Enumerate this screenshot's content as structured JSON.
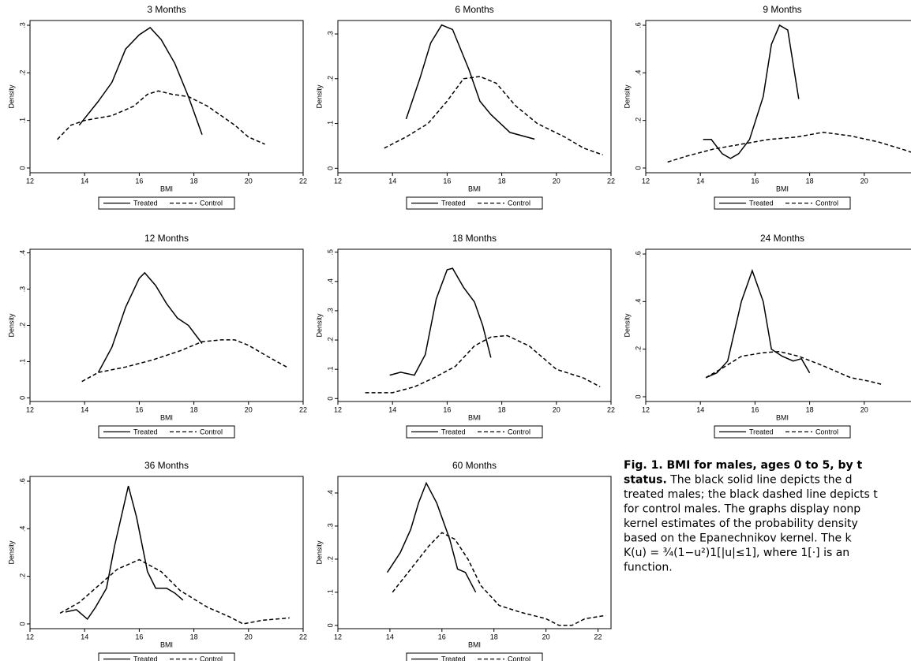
{
  "chart_data": [
    {
      "type": "line",
      "title": "3 Months",
      "x_label": "BMI",
      "y_label": "Density",
      "xlim": [
        12,
        22
      ],
      "xticks": [
        12,
        14,
        16,
        18,
        20,
        22
      ],
      "ylim": [
        -0.01,
        0.31
      ],
      "yticks": [
        0,
        {
          "value": 0.1,
          "label": ".1"
        },
        {
          "value": 0.2,
          "label": ".2"
        },
        {
          "value": 0.3,
          "label": ".3"
        }
      ],
      "series": [
        {
          "name": "Treated",
          "color": "#000000",
          "dash": false,
          "x": [
            13.8,
            14.5,
            15,
            15.5,
            16,
            16.4,
            16.8,
            17.3,
            17.8,
            18.3
          ],
          "values": [
            0.09,
            0.14,
            0.18,
            0.25,
            0.28,
            0.295,
            0.27,
            0.22,
            0.15,
            0.07
          ]
        },
        {
          "name": "Control",
          "color": "#000000",
          "dash": true,
          "x": [
            13,
            13.5,
            14,
            15,
            15.8,
            16.3,
            16.7,
            17.2,
            17.8,
            18.5,
            19.5,
            20,
            20.6
          ],
          "values": [
            0.06,
            0.09,
            0.1,
            0.11,
            0.13,
            0.155,
            0.162,
            0.155,
            0.15,
            0.13,
            0.09,
            0.065,
            0.05
          ]
        }
      ]
    },
    {
      "type": "line",
      "title": "6 Months",
      "x_label": "BMI",
      "y_label": "Density",
      "xlim": [
        12,
        22
      ],
      "xticks": [
        12,
        14,
        16,
        18,
        20,
        22
      ],
      "ylim": [
        -0.01,
        0.33
      ],
      "yticks": [
        0,
        {
          "value": 0.1,
          "label": ".1"
        },
        {
          "value": 0.2,
          "label": ".2"
        },
        {
          "value": 0.3,
          "label": ".3"
        }
      ],
      "series": [
        {
          "name": "Treated",
          "color": "#000000",
          "dash": false,
          "x": [
            14.5,
            15,
            15.4,
            15.8,
            16.2,
            16.8,
            17.2,
            17.6,
            18.3,
            19.2
          ],
          "values": [
            0.11,
            0.2,
            0.28,
            0.32,
            0.31,
            0.22,
            0.15,
            0.12,
            0.08,
            0.065
          ]
        },
        {
          "name": "Control",
          "color": "#000000",
          "dash": true,
          "x": [
            13.7,
            14.5,
            15.3,
            16,
            16.6,
            17.2,
            17.8,
            18.5,
            19.3,
            20.3,
            21,
            21.7
          ],
          "values": [
            0.045,
            0.07,
            0.1,
            0.15,
            0.2,
            0.205,
            0.19,
            0.14,
            0.1,
            0.07,
            0.045,
            0.03
          ]
        }
      ]
    },
    {
      "type": "line",
      "title": "9 Months",
      "x_label": "BMI",
      "y_label": "Density",
      "xlim": [
        12,
        22
      ],
      "xticks": [
        12,
        14,
        16,
        18,
        20,
        22
      ],
      "ylim": [
        -0.02,
        0.62
      ],
      "yticks": [
        0,
        {
          "value": 0.2,
          "label": ".2"
        },
        {
          "value": 0.4,
          "label": ".4"
        },
        {
          "value": 0.6,
          "label": ".6"
        }
      ],
      "series": [
        {
          "name": "Treated",
          "color": "#000000",
          "dash": false,
          "x": [
            14.1,
            14.4,
            14.8,
            15.1,
            15.4,
            15.8,
            16.3,
            16.6,
            16.9,
            17.2,
            17.6
          ],
          "values": [
            0.12,
            0.12,
            0.06,
            0.04,
            0.06,
            0.12,
            0.3,
            0.52,
            0.6,
            0.58,
            0.29
          ]
        },
        {
          "name": "Control",
          "color": "#000000",
          "dash": true,
          "x": [
            12.8,
            13.5,
            14.5,
            15.5,
            16.5,
            17.5,
            18.5,
            19.5,
            20.5,
            21.5,
            22
          ],
          "values": [
            0.025,
            0.05,
            0.08,
            0.1,
            0.12,
            0.13,
            0.15,
            0.135,
            0.11,
            0.075,
            0.055
          ]
        }
      ]
    },
    {
      "type": "line",
      "title": "12 Months",
      "x_label": "BMI",
      "y_label": "Density",
      "xlim": [
        12,
        22
      ],
      "xticks": [
        12,
        14,
        16,
        18,
        20,
        22
      ],
      "ylim": [
        -0.01,
        0.41
      ],
      "yticks": [
        0,
        {
          "value": 0.1,
          "label": ".1"
        },
        {
          "value": 0.2,
          "label": ".2"
        },
        {
          "value": 0.3,
          "label": ".3"
        },
        {
          "value": 0.4,
          "label": ".4"
        }
      ],
      "series": [
        {
          "name": "Treated",
          "color": "#000000",
          "dash": false,
          "x": [
            14.5,
            15,
            15.5,
            16,
            16.2,
            16.6,
            17,
            17.4,
            17.8,
            18.3
          ],
          "values": [
            0.07,
            0.14,
            0.25,
            0.33,
            0.345,
            0.31,
            0.26,
            0.22,
            0.2,
            0.15
          ]
        },
        {
          "name": "Control",
          "color": "#000000",
          "dash": true,
          "x": [
            13.9,
            14.5,
            15.5,
            16.5,
            17.5,
            18.3,
            19,
            19.5,
            20,
            20.8,
            21.4
          ],
          "values": [
            0.045,
            0.07,
            0.085,
            0.105,
            0.13,
            0.155,
            0.16,
            0.16,
            0.145,
            0.11,
            0.085
          ]
        }
      ]
    },
    {
      "type": "line",
      "title": "18 Months",
      "x_label": "BMI",
      "y_label": "Density",
      "xlim": [
        12,
        22
      ],
      "xticks": [
        12,
        14,
        16,
        18,
        20,
        22
      ],
      "ylim": [
        -0.01,
        0.51
      ],
      "yticks": [
        0,
        {
          "value": 0.1,
          "label": ".1"
        },
        {
          "value": 0.2,
          "label": ".2"
        },
        {
          "value": 0.3,
          "label": ".3"
        },
        {
          "value": 0.4,
          "label": ".4"
        },
        {
          "value": 0.5,
          "label": ".5"
        }
      ],
      "series": [
        {
          "name": "Treated",
          "color": "#000000",
          "dash": false,
          "x": [
            13.9,
            14.3,
            14.8,
            15.2,
            15.6,
            16,
            16.2,
            16.6,
            17,
            17.3,
            17.6
          ],
          "values": [
            0.08,
            0.09,
            0.08,
            0.15,
            0.34,
            0.44,
            0.445,
            0.38,
            0.33,
            0.25,
            0.14
          ]
        },
        {
          "name": "Control",
          "color": "#000000",
          "dash": true,
          "x": [
            13,
            14,
            14.8,
            15.5,
            16.3,
            17,
            17.6,
            18.2,
            19,
            20,
            21,
            21.6
          ],
          "values": [
            0.02,
            0.02,
            0.04,
            0.07,
            0.11,
            0.18,
            0.21,
            0.215,
            0.18,
            0.1,
            0.07,
            0.04
          ]
        }
      ]
    },
    {
      "type": "line",
      "title": "24 Months",
      "x_label": "BMI",
      "y_label": "Density",
      "xlim": [
        12,
        22
      ],
      "xticks": [
        12,
        14,
        16,
        18,
        20,
        22
      ],
      "ylim": [
        -0.02,
        0.62
      ],
      "yticks": [
        0,
        {
          "value": 0.2,
          "label": ".2"
        },
        {
          "value": 0.4,
          "label": ".4"
        },
        {
          "value": 0.6,
          "label": ".6"
        }
      ],
      "series": [
        {
          "name": "Treated",
          "color": "#000000",
          "dash": false,
          "x": [
            14.2,
            14.6,
            15,
            15.5,
            15.9,
            16.3,
            16.6,
            17,
            17.4,
            17.7,
            18
          ],
          "values": [
            0.08,
            0.1,
            0.15,
            0.4,
            0.53,
            0.4,
            0.2,
            0.17,
            0.15,
            0.16,
            0.1
          ]
        },
        {
          "name": "Control",
          "color": "#000000",
          "dash": true,
          "x": [
            14.2,
            14.8,
            15.5,
            16.3,
            16.9,
            17.6,
            18.5,
            19.5,
            20.2,
            20.7
          ],
          "values": [
            0.08,
            0.12,
            0.17,
            0.185,
            0.19,
            0.17,
            0.13,
            0.08,
            0.065,
            0.05
          ]
        }
      ]
    },
    {
      "type": "line",
      "title": "36 Months",
      "x_label": "BMI",
      "y_label": "Density",
      "xlim": [
        12,
        22
      ],
      "xticks": [
        12,
        14,
        16,
        18,
        20,
        22
      ],
      "ylim": [
        -0.02,
        0.62
      ],
      "yticks": [
        0,
        {
          "value": 0.2,
          "label": ".2"
        },
        {
          "value": 0.4,
          "label": ".4"
        },
        {
          "value": 0.6,
          "label": ".6"
        }
      ],
      "series": [
        {
          "name": "Treated",
          "color": "#000000",
          "dash": false,
          "x": [
            13.3,
            13.7,
            14.1,
            14.4,
            14.8,
            15.1,
            15.6,
            15.9,
            16.3,
            16.6,
            17,
            17.3,
            17.6
          ],
          "values": [
            0.05,
            0.06,
            0.02,
            0.07,
            0.15,
            0.33,
            0.58,
            0.45,
            0.22,
            0.15,
            0.15,
            0.13,
            0.1
          ]
        },
        {
          "name": "Control",
          "color": "#000000",
          "dash": true,
          "x": [
            13.1,
            13.8,
            14.5,
            15.2,
            16,
            16.8,
            17.5,
            18.5,
            19.3,
            19.8,
            20.5,
            21.5
          ],
          "values": [
            0.045,
            0.09,
            0.16,
            0.23,
            0.27,
            0.22,
            0.14,
            0.07,
            0.03,
            0.0,
            0.015,
            0.025
          ]
        }
      ]
    },
    {
      "type": "line",
      "title": "60 Months",
      "x_label": "BMI",
      "y_label": "Density",
      "xlim": [
        12,
        22.5
      ],
      "xticks": [
        12,
        14,
        16,
        18,
        20,
        22
      ],
      "ylim": [
        -0.01,
        0.45
      ],
      "yticks": [
        0,
        {
          "value": 0.1,
          "label": ".1"
        },
        {
          "value": 0.2,
          "label": ".2"
        },
        {
          "value": 0.3,
          "label": ".3"
        },
        {
          "value": 0.4,
          "label": ".4"
        }
      ],
      "series": [
        {
          "name": "Treated",
          "color": "#000000",
          "dash": false,
          "x": [
            13.9,
            14.4,
            14.8,
            15.1,
            15.4,
            15.8,
            16.3,
            16.6,
            16.9,
            17.3
          ],
          "values": [
            0.16,
            0.22,
            0.29,
            0.37,
            0.43,
            0.37,
            0.26,
            0.17,
            0.16,
            0.1
          ]
        },
        {
          "name": "Control",
          "color": "#000000",
          "dash": true,
          "x": [
            14.1,
            14.8,
            15.5,
            16,
            16.5,
            17,
            17.5,
            18.2,
            19,
            20,
            20.5,
            21,
            21.5,
            22.3
          ],
          "values": [
            0.1,
            0.17,
            0.24,
            0.28,
            0.26,
            0.2,
            0.12,
            0.06,
            0.04,
            0.02,
            0.0,
            0.0,
            0.02,
            0.03
          ]
        }
      ]
    }
  ],
  "caption": {
    "lines": [
      [
        {
          "text": "Fig. 1. BMI for males, ages 0 to 5, by t",
          "bold": true
        }
      ],
      [
        {
          "text": "status.",
          "bold": true
        },
        {
          "text": " The black solid line depicts the d",
          "bold": false
        }
      ],
      [
        {
          "text": "treated males; the black dashed line depicts t",
          "bold": false
        }
      ],
      [
        {
          "text": "for control males. The graphs display nonp",
          "bold": false
        }
      ],
      [
        {
          "text": "kernel estimates of the probability density",
          "bold": false
        }
      ],
      [
        {
          "text": "based on the Epanechnikov kernel. The k",
          "bold": false
        }
      ],
      [
        {
          "text": "K(u) = ¾(1−u²)1[|u|≤1], where 1[·] is an",
          "bold": false
        }
      ],
      [
        {
          "text": "function.",
          "bold": false
        }
      ]
    ]
  }
}
